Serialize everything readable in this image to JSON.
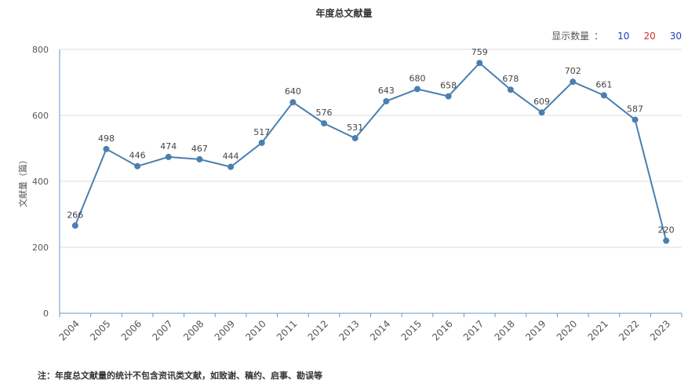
{
  "header": {
    "title": "年度总文献量"
  },
  "count_control": {
    "label": "显示数量",
    "separator": "：",
    "options": [
      {
        "label": "10",
        "color": "#1f3fbf"
      },
      {
        "label": "20",
        "color": "#d9282f"
      },
      {
        "label": "30",
        "color": "#1f3fbf"
      }
    ]
  },
  "footnote": "注：年度总文献量的统计不包含资讯类文献，如致谢、稿约、启事、勘误等",
  "chart_data": {
    "type": "line",
    "title": "年度总文献量",
    "xlabel": "",
    "ylabel": "文献量（篇）",
    "ylim": [
      0,
      800
    ],
    "yticks": [
      0,
      200,
      400,
      600,
      800
    ],
    "grid": true,
    "line_color": "#4a7fb0",
    "x": [
      "2004",
      "2005",
      "2006",
      "2007",
      "2008",
      "2009",
      "2010",
      "2011",
      "2012",
      "2013",
      "2014",
      "2015",
      "2016",
      "2017",
      "2018",
      "2019",
      "2020",
      "2021",
      "2022",
      "2023"
    ],
    "values": [
      266,
      498,
      446,
      474,
      467,
      444,
      517,
      640,
      576,
      531,
      643,
      680,
      658,
      759,
      678,
      609,
      702,
      661,
      587,
      220
    ]
  }
}
